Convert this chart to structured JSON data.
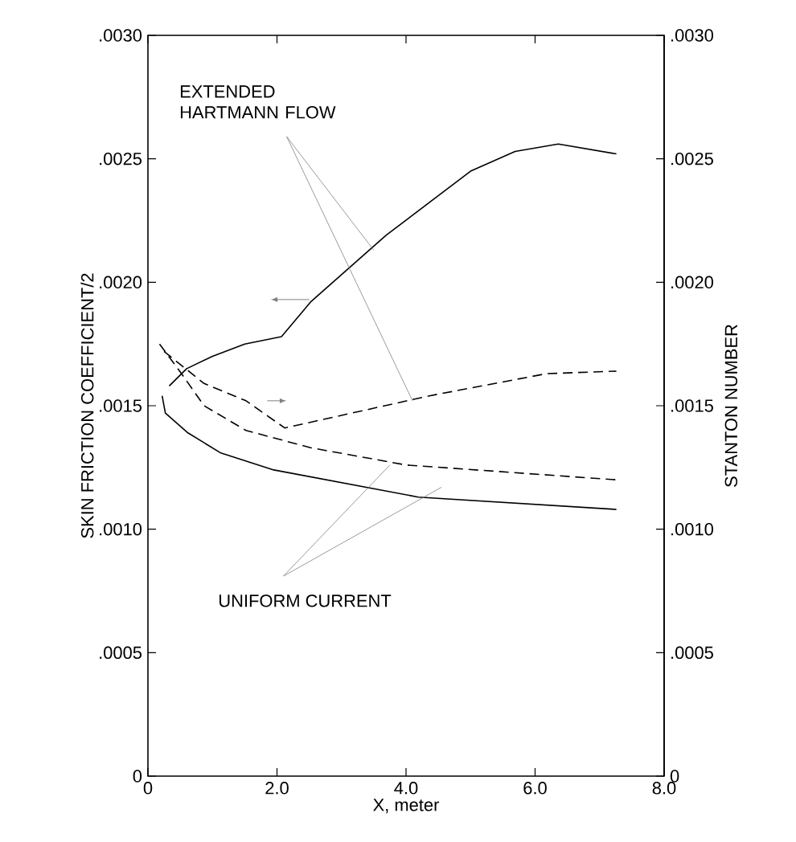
{
  "chart_data": {
    "type": "line",
    "xlabel": "X, meter",
    "ylabel": "SKIN FRICTION COEFFICIENT/2",
    "y2label": "STANTON NUMBER",
    "series": [
      {
        "color": "#000000",
        "line_style": "solid",
        "x": [
          0.33,
          0.6,
          1.0,
          1.5,
          2.07,
          2.52,
          3.69,
          5.0,
          5.69,
          6.36,
          7.26
        ],
        "values": [
          0.00158,
          0.00165,
          0.0017,
          0.00175,
          0.00178,
          0.00192,
          0.00219,
          0.00245,
          0.00253,
          0.00256,
          0.00252
        ]
      },
      {
        "color": "#000000",
        "line_style": "solid",
        "x": [
          0.22,
          0.27,
          0.62,
          1.12,
          1.95,
          4.19,
          7.26
        ],
        "values": [
          0.00154,
          0.00147,
          0.00139,
          0.00131,
          0.00124,
          0.00113,
          0.00108
        ]
      },
      {
        "color": "#000000",
        "line_style": "dashed",
        "axis": "y2",
        "x": [
          0.25,
          0.87,
          1.52,
          2.12,
          4.36,
          6.18,
          7.26
        ],
        "values": [
          0.00172,
          0.00159,
          0.00152,
          0.00141,
          0.00154,
          0.00163,
          0.00164
        ]
      },
      {
        "color": "#000000",
        "line_style": "dashed",
        "axis": "y2",
        "x": [
          0.18,
          0.52,
          0.87,
          1.52,
          2.52,
          4.0,
          7.26
        ],
        "values": [
          0.00175,
          0.00163,
          0.0015,
          0.0014,
          0.00133,
          0.00126,
          0.0012
        ]
      }
    ],
    "xlim": [
      0,
      8
    ],
    "xticks": [
      0,
      {
        "value": 2,
        "label": "2.0"
      },
      {
        "value": 4,
        "label": "4.0"
      },
      {
        "value": 6,
        "label": "6.0"
      },
      {
        "value": 8,
        "label": "8.0"
      }
    ],
    "ylim": [
      0,
      0.003
    ],
    "yticks": [
      0,
      {
        "value": 0.0005,
        "label": ".0005"
      },
      {
        "value": 0.001,
        "label": ".0010"
      },
      {
        "value": 0.0015,
        "label": ".0015"
      },
      {
        "value": 0.002,
        "label": ".0020"
      },
      {
        "value": 0.0025,
        "label": ".0025"
      },
      {
        "value": 0.003,
        "label": ".0030"
      }
    ],
    "y2lim": [
      0,
      0.003
    ],
    "y2ticks": [
      0,
      {
        "value": 0.0005,
        "label": ".0005"
      },
      {
        "value": 0.001,
        "label": ".0010"
      },
      {
        "value": 0.0015,
        "label": ".0015"
      },
      {
        "value": 0.002,
        "label": ".0020"
      },
      {
        "value": 0.0025,
        "label": ".0025"
      },
      {
        "value": 0.003,
        "label": ".0030"
      }
    ],
    "annotations": [
      "EXTENDED HARTMANN FLOW",
      "UNIFORM CURRENT"
    ],
    "marker": "none",
    "grid": false
  }
}
